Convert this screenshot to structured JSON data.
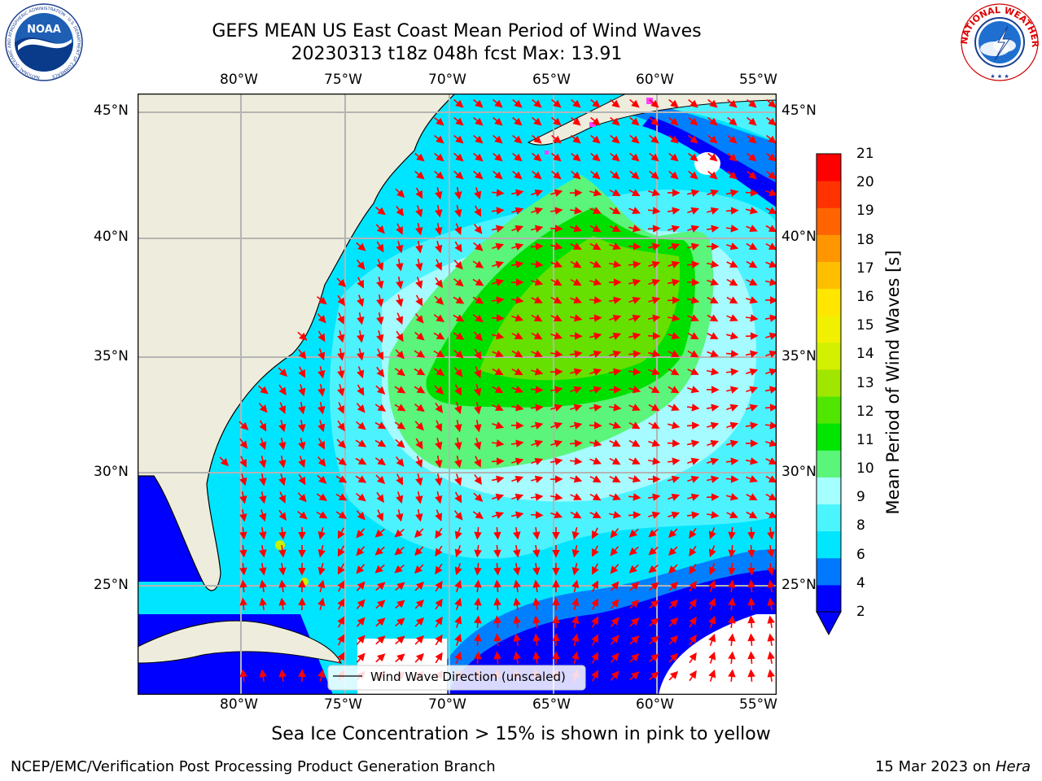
{
  "header": {
    "title_line1": "GEFS MEAN US East Coast Mean Period of Wind Waves",
    "title_line2": "20230313 t18z 048h fcst   Max: 13.91"
  },
  "logos": {
    "left": "NOAA",
    "left_ring": "NATIONAL OCEANIC AND ATMOSPHERIC ADMINISTRATION · U.S. DEPARTMENT OF COMMERCE",
    "right_ring": "NATIONAL WEATHER SERVICE"
  },
  "map": {
    "lon_labels": [
      "80°W",
      "75°W",
      "70°W",
      "65°W",
      "60°W",
      "55°W"
    ],
    "lat_labels": [
      "45°N",
      "40°N",
      "35°N",
      "30°N",
      "25°N"
    ],
    "legend_text": "Wind Wave Direction (unscaled)",
    "colors": {
      "land": "#eeecdc",
      "water_bands": [
        "#0000ff",
        "#0080ff",
        "#00e5ff",
        "#4df2ff",
        "#a0fbff",
        "#5af57a",
        "#00e000",
        "#7de000",
        "#c8f000"
      ],
      "ice": "#ff40ff",
      "arrow": "#ff0000",
      "grid": "#b4b4b4"
    }
  },
  "colorbar": {
    "label": "Mean Period of Wind Waves [s]",
    "ticks": [
      "2",
      "4",
      "6",
      "8",
      "9",
      "10",
      "11",
      "12",
      "13",
      "14",
      "15",
      "16",
      "17",
      "18",
      "19",
      "20",
      "21"
    ],
    "colors": [
      "#0000ff",
      "#0078ff",
      "#00e6ff",
      "#4bf5ff",
      "#a5ffff",
      "#5af57a",
      "#00e600",
      "#50e600",
      "#a0e600",
      "#d2f000",
      "#f0f000",
      "#ffe600",
      "#ffbe00",
      "#ff9600",
      "#ff6400",
      "#ff3200",
      "#ff0000"
    ]
  },
  "note": "Sea Ice Concentration > 15% is shown in pink to yellow",
  "footer": {
    "left": "NCEP/EMC/Verification Post Processing Product Generation Branch",
    "date": "15 Mar 2023 on ",
    "host": "Hera"
  }
}
